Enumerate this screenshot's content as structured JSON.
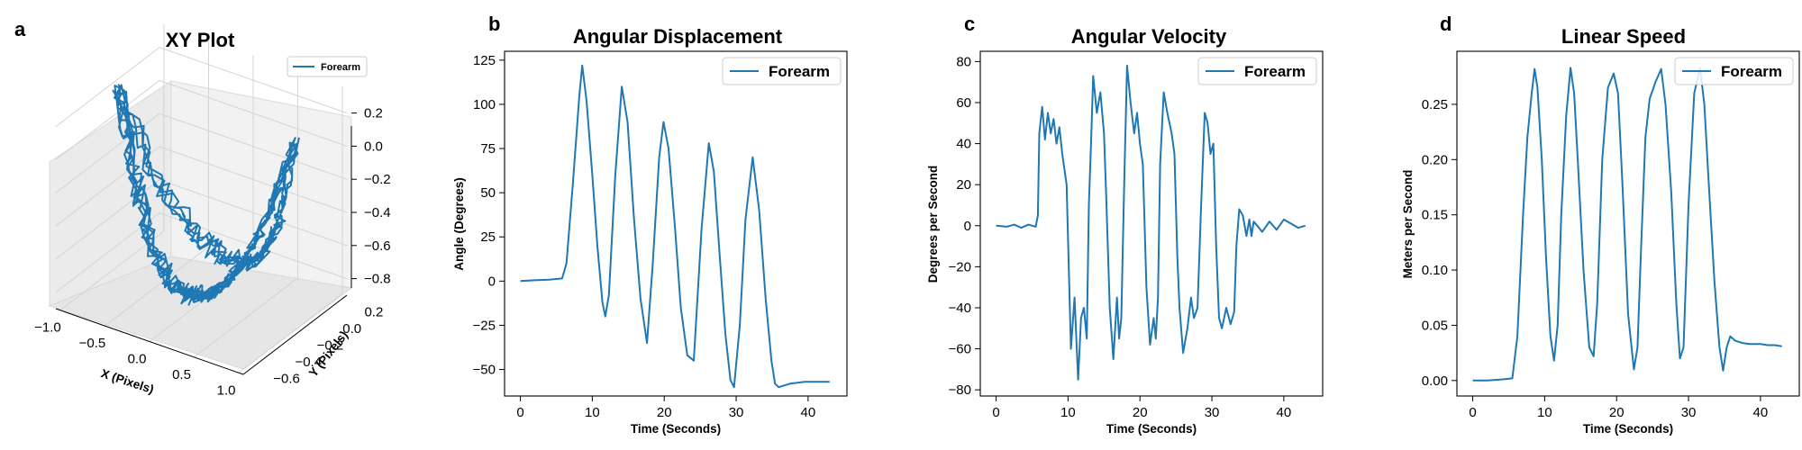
{
  "series_color": "#1f77b4",
  "chart_data": [
    {
      "id": "a",
      "type": "line3d",
      "title": "XY Plot",
      "xlabel": "X (Pixels)",
      "ylabel": "Y (Pixels)",
      "zlabel": "",
      "xlim": [
        -1.05,
        1.05
      ],
      "ylim": [
        -0.65,
        0.3
      ],
      "zlim": [
        -0.9,
        0.35
      ],
      "xticks": [
        -1.0,
        -0.5,
        0.0,
        0.5,
        1.0
      ],
      "yticks": [
        -0.6,
        -0.4,
        -0.2,
        0.0,
        0.2
      ],
      "zticks": [
        -0.8,
        -0.6,
        -0.4,
        -0.2,
        0.0,
        0.2
      ],
      "legend": [
        "Forearm"
      ],
      "legend_position": "top-right",
      "series": [
        {
          "name": "Forearm",
          "cycles": 5,
          "path": "trajectory traces a U-shaped arc from x -0.95 to 1.0, lowest near x 0.0, cycling 5 times"
        }
      ]
    },
    {
      "id": "b",
      "type": "line",
      "title": "Angular Displacement",
      "xlabel": "Time (Seconds)",
      "ylabel": "Angle (Degrees)",
      "xlim": [
        -2.2,
        45.4
      ],
      "ylim": [
        -65,
        130
      ],
      "xticks": [
        0,
        10,
        20,
        30,
        40
      ],
      "yticks": [
        -50,
        -25,
        0,
        25,
        50,
        75,
        100,
        125
      ],
      "legend": [
        "Forearm"
      ],
      "legend_position": "upper right",
      "series": [
        {
          "name": "Forearm",
          "x": [
            0,
            2,
            4,
            5.8,
            6.4,
            7.3,
            8.2,
            8.6,
            9.2,
            10.0,
            10.7,
            11.4,
            11.8,
            12.3,
            13.2,
            14.1,
            14.9,
            15.8,
            16.7,
            17.6,
            18.4,
            19.3,
            19.9,
            20.6,
            21.5,
            22.3,
            23.2,
            24.1,
            25.2,
            26.2,
            26.9,
            27.7,
            28.5,
            29.2,
            29.7,
            30.5,
            31.3,
            32.3,
            33.2,
            34.1,
            34.9,
            35.4,
            35.9,
            37.5,
            39.5,
            41.5,
            43.0
          ],
          "y": [
            0,
            0.5,
            0.8,
            1.5,
            10,
            55,
            105,
            122,
            102,
            60,
            20,
            -12,
            -20,
            -8,
            60,
            110,
            90,
            35,
            -10,
            -35,
            10,
            70,
            90,
            75,
            30,
            -15,
            -42,
            -45,
            30,
            78,
            62,
            15,
            -30,
            -56,
            -60,
            -25,
            35,
            70,
            40,
            -10,
            -45,
            -58,
            -60,
            -58,
            -57,
            -57,
            -57
          ]
        }
      ]
    },
    {
      "id": "c",
      "type": "line",
      "title": "Angular Velocity",
      "xlabel": "Time (Seconds)",
      "ylabel": "Degrees per Second",
      "xlim": [
        -2.2,
        45.4
      ],
      "ylim": [
        -83,
        85
      ],
      "xticks": [
        0,
        10,
        20,
        30,
        40
      ],
      "yticks": [
        -80,
        -60,
        -40,
        -20,
        0,
        20,
        40,
        60,
        80
      ],
      "legend": [
        "Forearm"
      ],
      "legend_position": "upper right",
      "series": [
        {
          "name": "Forearm",
          "x": [
            0,
            1.5,
            2.5,
            3.5,
            4.5,
            5.5,
            5.8,
            6.0,
            6.4,
            6.8,
            7.2,
            7.6,
            8.0,
            8.4,
            8.8,
            9.2,
            9.8,
            10.1,
            10.4,
            10.9,
            11.4,
            11.8,
            12.2,
            12.6,
            12.9,
            13.2,
            13.5,
            14.0,
            14.5,
            15.0,
            15.3,
            15.8,
            16.3,
            16.8,
            17.1,
            17.4,
            17.8,
            18.2,
            18.7,
            19.2,
            19.6,
            20.0,
            20.4,
            20.9,
            21.4,
            21.9,
            22.2,
            22.5,
            22.8,
            23.3,
            23.8,
            24.4,
            24.8,
            25.2,
            25.5,
            26.0,
            26.6,
            27.1,
            27.5,
            28.0,
            28.5,
            29.0,
            29.4,
            29.8,
            30.2,
            30.6,
            31.0,
            31.4,
            32.0,
            32.6,
            33.1,
            33.4,
            33.8,
            34.3,
            34.8,
            35.2,
            35.5,
            35.8,
            36.3,
            37.0,
            38.0,
            39.0,
            40.0,
            41.0,
            42.0,
            43.0
          ],
          "y": [
            0,
            -0.5,
            0.5,
            -1,
            0.5,
            -0.5,
            5,
            45,
            58,
            42,
            55,
            45,
            52,
            40,
            48,
            35,
            20,
            -20,
            -60,
            -35,
            -75,
            -45,
            -40,
            -55,
            10,
            40,
            73,
            55,
            65,
            45,
            15,
            -40,
            -65,
            -35,
            -55,
            -45,
            20,
            78,
            60,
            45,
            55,
            40,
            30,
            -30,
            -58,
            -45,
            -55,
            -35,
            30,
            65,
            55,
            45,
            35,
            -15,
            -40,
            -62,
            -50,
            -35,
            -45,
            -40,
            10,
            55,
            50,
            35,
            40,
            -10,
            -45,
            -50,
            -40,
            -48,
            -42,
            -10,
            8,
            5,
            -5,
            3,
            -5,
            2,
            0,
            -3,
            2,
            -2,
            3,
            1,
            -1,
            0
          ]
        }
      ]
    },
    {
      "id": "d",
      "type": "line",
      "title": "Linear Speed",
      "xlabel": "Time (Seconds)",
      "ylabel": "Meters per Second",
      "xlim": [
        -2.2,
        45.4
      ],
      "ylim": [
        -0.014,
        0.298
      ],
      "xticks": [
        0,
        10,
        20,
        30,
        40
      ],
      "yticks": [
        0.0,
        0.05,
        0.1,
        0.15,
        0.2,
        0.25
      ],
      "legend": [
        "Forearm"
      ],
      "legend_position": "upper right",
      "series": [
        {
          "name": "Forearm",
          "x": [
            0,
            2,
            4,
            5.5,
            6.2,
            7.0,
            7.6,
            8.2,
            8.6,
            9.0,
            9.6,
            10.2,
            10.8,
            11.3,
            11.8,
            12.3,
            13.0,
            13.6,
            14.1,
            14.6,
            15.4,
            16.2,
            16.8,
            17.3,
            18.0,
            18.8,
            19.6,
            20.2,
            20.8,
            21.6,
            22.4,
            22.9,
            23.4,
            24.0,
            24.6,
            25.4,
            26.2,
            26.8,
            27.6,
            28.3,
            28.8,
            29.3,
            30.0,
            30.8,
            31.6,
            32.2,
            32.8,
            33.6,
            34.3,
            34.8,
            35.3,
            35.8,
            36.5,
            37.5,
            38.5,
            40.0,
            41.0,
            42.0,
            43.0
          ],
          "y": [
            0,
            0,
            0.001,
            0.002,
            0.04,
            0.15,
            0.22,
            0.26,
            0.282,
            0.265,
            0.2,
            0.11,
            0.04,
            0.018,
            0.05,
            0.15,
            0.24,
            0.283,
            0.26,
            0.2,
            0.1,
            0.03,
            0.022,
            0.07,
            0.2,
            0.265,
            0.278,
            0.26,
            0.18,
            0.06,
            0.01,
            0.03,
            0.12,
            0.22,
            0.255,
            0.27,
            0.282,
            0.25,
            0.17,
            0.07,
            0.02,
            0.03,
            0.16,
            0.26,
            0.283,
            0.25,
            0.18,
            0.09,
            0.03,
            0.009,
            0.03,
            0.04,
            0.036,
            0.034,
            0.033,
            0.033,
            0.032,
            0.032,
            0.031
          ]
        }
      ]
    }
  ]
}
